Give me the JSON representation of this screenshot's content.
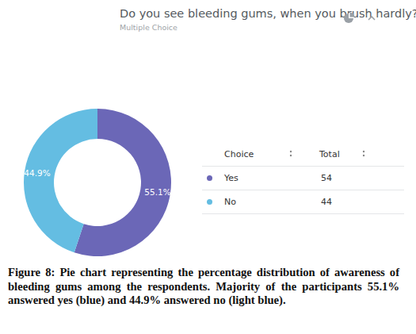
{
  "chart_data": {
    "type": "pie",
    "title": "Do you see bleeding gums, when you brush hardly?",
    "subtitle": "Multiple Choice",
    "categories": [
      "Yes",
      "No"
    ],
    "values": [
      55.1,
      44.9
    ],
    "value_labels": [
      "55.1%",
      "44.9%"
    ],
    "totals": [
      54,
      44
    ],
    "colors": [
      "#6b67b7",
      "#64bde2"
    ],
    "data_labels": true,
    "legend": false
  },
  "table": {
    "header": [
      "Choice",
      "Total"
    ]
  },
  "caption": "Figure 8: Pie chart representing the percentage distribution of awareness of bleeding gums among the respondents. Majority of the participants 55.1% answered yes (blue) and 44.9% answered no (light blue)."
}
